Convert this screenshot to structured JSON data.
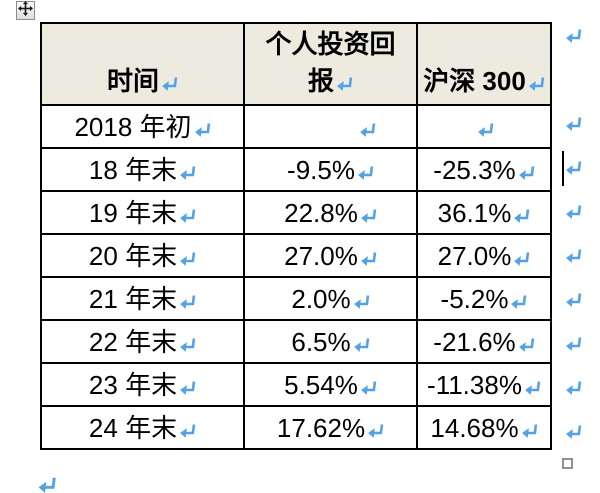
{
  "table": {
    "header": {
      "time": "时间",
      "personal_return_line1": "个人投资回",
      "personal_return_line2": "报",
      "csi300": "沪深 300"
    },
    "rows": [
      {
        "time": "2018 年初",
        "personal": "",
        "csi300": ""
      },
      {
        "time": "18 年末",
        "personal": "-9.5%",
        "csi300": "-25.3%"
      },
      {
        "time": "19 年末",
        "personal": "22.8%",
        "csi300": "36.1%"
      },
      {
        "time": "20 年末",
        "personal": "27.0%",
        "csi300": "27.0%"
      },
      {
        "time": "21 年末",
        "personal": "2.0%",
        "csi300": "-5.2%"
      },
      {
        "time": "22 年末",
        "personal": "6.5%",
        "csi300": "-21.6%"
      },
      {
        "time": "23 年末",
        "personal": "5.54%",
        "csi300": "-11.38%"
      },
      {
        "time": "24 年末",
        "personal": "17.62%",
        "csi300": "14.68%"
      }
    ]
  },
  "colors": {
    "header_bg": "#edebe0",
    "table_border": "#000000",
    "format_mark_blue": "#54a2e6",
    "handle_border_gray": "#909090"
  },
  "icons": {
    "move_handle": "four-way-move-arrow",
    "resize_handle": "table-resize-square",
    "cell_end_mark": "line-break-return-mark",
    "row_end_mark": "line-break-return-mark",
    "paragraph_mark": "line-break-return-mark"
  }
}
